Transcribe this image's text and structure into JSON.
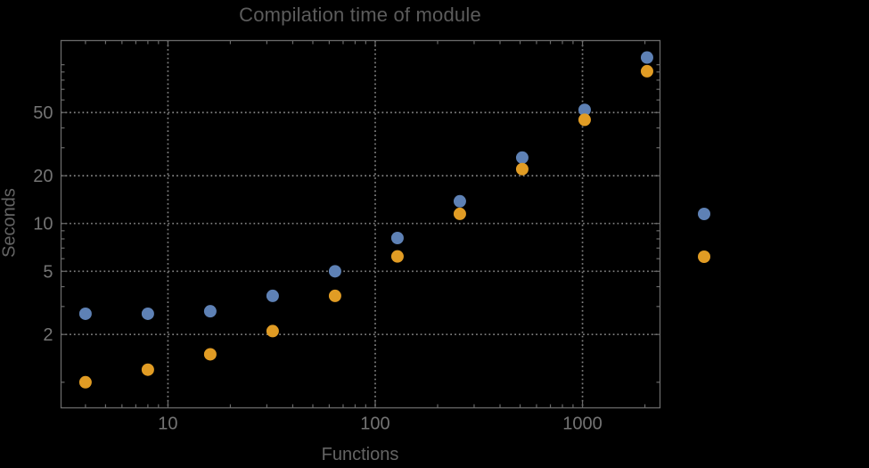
{
  "chart_data": {
    "type": "scatter",
    "title": "Compilation time of module",
    "xlabel": "Functions",
    "ylabel": "Seconds",
    "x_scale": "log",
    "y_scale": "log",
    "xlim": [
      3.05,
      2365
    ],
    "ylim": [
      0.69,
      142
    ],
    "grid_style": "dotted",
    "legend_position": "right-outside",
    "x": [
      4,
      8,
      16,
      32,
      64,
      128,
      256,
      512,
      1024,
      2048
    ],
    "series": [
      {
        "name": "series-blue",
        "color": "#5E81B5",
        "values": [
          2.7,
          2.7,
          2.8,
          3.5,
          5.0,
          8.1,
          13.8,
          26,
          52,
          111
        ]
      },
      {
        "name": "series-orange",
        "color": "#E19C24",
        "values": [
          1.0,
          1.2,
          1.5,
          2.1,
          3.5,
          6.2,
          11.5,
          22,
          45,
          91
        ]
      }
    ],
    "x_ticks": {
      "major": [
        10,
        100,
        1000
      ],
      "minor": [
        4,
        5,
        6,
        7,
        8,
        9,
        20,
        30,
        40,
        50,
        60,
        70,
        80,
        90,
        200,
        300,
        400,
        500,
        600,
        700,
        800,
        900,
        2000
      ]
    },
    "y_ticks": {
      "major": [
        2,
        5,
        10,
        20,
        50
      ],
      "minor": [
        1,
        3,
        4,
        6,
        7,
        8,
        9,
        30,
        40,
        60,
        70,
        80,
        90,
        100
      ]
    },
    "x_tick_labels": [
      "10",
      "100",
      "1000"
    ],
    "y_tick_labels": [
      "2",
      "5",
      "10",
      "20",
      "50"
    ],
    "colors": {
      "background": "#000000",
      "frame": "#696969",
      "grid": "#828282",
      "tick_label": "#747474",
      "title": "#5c5c5c",
      "axis_label": "#646464"
    }
  },
  "legend": {
    "markers": [
      {
        "series": "series-blue",
        "color": "#5E81B5"
      },
      {
        "series": "series-orange",
        "color": "#E19C24"
      }
    ]
  }
}
